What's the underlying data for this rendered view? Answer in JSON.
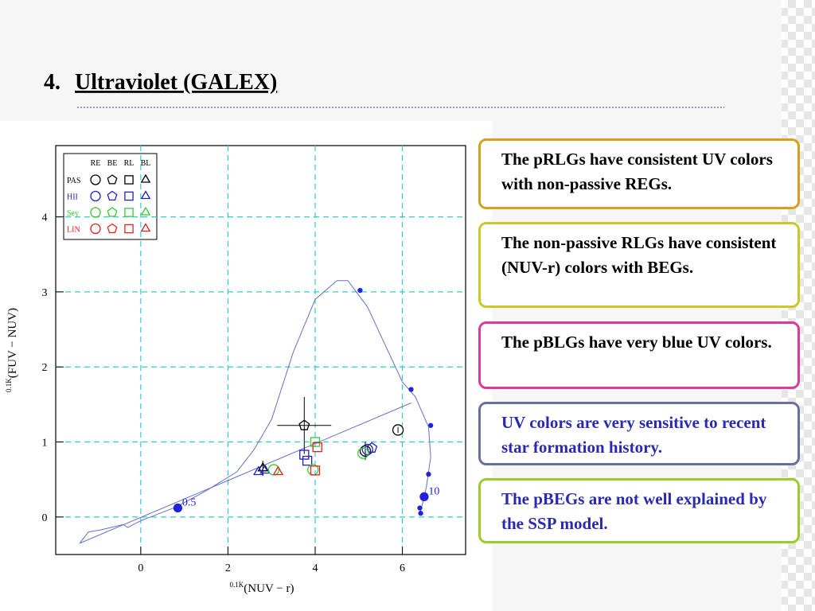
{
  "slide": {
    "number": "4.",
    "title": "Ultraviolet (GALEX)"
  },
  "boxes": [
    {
      "text": "The pRLGs have consistent UV colors with non-passive REGs.",
      "border": "#d4a020",
      "color": "#000000"
    },
    {
      "text": "The non-passive RLGs have consistent (NUV-r) colors with BEGs.",
      "border": "#c9c828",
      "color": "#000000"
    },
    {
      "text": "The pBLGs have very blue UV colors.",
      "border": "#d63c98",
      "color": "#000000"
    },
    {
      "text": "UV colors are very sensitive to recent star formation history.",
      "border": "#6b6f9e",
      "color": "#2a2ab0"
    },
    {
      "text": "The pBEGs are not well explained by the SSP model.",
      "border": "#9ccc2c",
      "color": "#2a2ab0"
    }
  ],
  "chart_data": {
    "type": "scatter",
    "xlabel_prefix": "0.1K",
    "xlabel": "(NUV − r)",
    "ylabel_prefix": "0.1K",
    "ylabel": "(FUV − NUV)",
    "xlim": [
      -1.95,
      7.45
    ],
    "ylim": [
      -0.5,
      4.95
    ],
    "xticks": [
      0,
      2,
      4,
      6
    ],
    "yticks": [
      0,
      1,
      2,
      3,
      4
    ],
    "grid": true,
    "grid_color": "#33cccc",
    "legend": {
      "columns": [
        "RE",
        "BE",
        "RL",
        "BL"
      ],
      "markers": [
        "circle",
        "pentagon",
        "square",
        "triangle"
      ],
      "rows": [
        {
          "label": "PAS",
          "color": "#000000"
        },
        {
          "label": "HII",
          "color": "#2020c0"
        },
        {
          "label": "Sey",
          "color": "#33cc33"
        },
        {
          "label": "LIN",
          "color": "#dd2222"
        }
      ]
    },
    "lines": [
      {
        "color": "#6670c8",
        "x": [
          -1.4,
          -1.2,
          -0.9,
          -0.4,
          -0.3,
          0,
          0.8,
          1.5,
          2.2,
          2.6,
          3.0,
          3.5,
          4.0,
          4.5,
          4.75,
          5.2,
          5.6,
          6.0,
          6.3,
          6.6,
          6.65,
          6.55,
          6.45,
          6.4
        ],
        "y": [
          -0.35,
          -0.2,
          -0.17,
          -0.1,
          -0.14,
          -0.05,
          0.13,
          0.35,
          0.6,
          0.9,
          1.3,
          2.2,
          2.9,
          3.15,
          3.15,
          2.8,
          2.3,
          1.8,
          1.6,
          1.2,
          0.8,
          0.4,
          0.15,
          0.05
        ]
      },
      {
        "color": "#6670c8",
        "x": [
          -1.4,
          6.2
        ],
        "y": [
          -0.35,
          1.52
        ]
      }
    ],
    "annotations": [
      {
        "text": "0.5",
        "x": 0.95,
        "y": 0.15
      },
      {
        "text": "10",
        "x": 6.6,
        "y": 0.3
      }
    ],
    "series": [
      {
        "color": "#2222dd",
        "marker": "dot",
        "size": 2.5,
        "x": [
          5.03,
          6.2,
          6.65,
          6.6,
          6.4,
          6.42
        ],
        "y": [
          3.02,
          1.7,
          1.22,
          0.57,
          0.12,
          0.05
        ]
      },
      {
        "color": "#2222dd",
        "marker": "dot",
        "size": 5,
        "x": [
          0.85,
          6.5
        ],
        "y": [
          0.12,
          0.27
        ]
      },
      {
        "color": "#000000",
        "marker": "pentagon",
        "x": [
          3.75
        ],
        "y": [
          1.22
        ],
        "xerr": [
          0.62
        ],
        "yerr": [
          0.38
        ]
      },
      {
        "color": "#000000",
        "marker": "circle",
        "x": [
          5.9,
          5.15
        ],
        "y": [
          1.16,
          0.88
        ],
        "yerr": [
          0.04,
          0.12
        ]
      },
      {
        "color": "#000000",
        "marker": "triangle",
        "x": [
          2.8
        ],
        "y": [
          0.65
        ],
        "yerr": [
          0.1
        ]
      },
      {
        "color": "#2020c0",
        "marker": "triangle",
        "x": [
          2.7,
          2.85
        ],
        "y": [
          0.6,
          0.62
        ]
      },
      {
        "color": "#2020c0",
        "marker": "square",
        "x": [
          3.75,
          3.82
        ],
        "y": [
          0.83,
          0.75
        ]
      },
      {
        "color": "#2020c0",
        "marker": "pentagon",
        "x": [
          5.3
        ],
        "y": [
          0.92
        ]
      },
      {
        "color": "#2020c0",
        "marker": "circle",
        "x": [
          5.2
        ],
        "y": [
          0.9
        ]
      },
      {
        "color": "#33cc33",
        "marker": "circle",
        "x": [
          3.05,
          3.95,
          5.1
        ],
        "y": [
          0.63,
          0.63,
          0.85
        ]
      },
      {
        "color": "#33cc33",
        "marker": "square",
        "x": [
          4.0
        ],
        "y": [
          1.0
        ]
      },
      {
        "color": "#dd2222",
        "marker": "triangle",
        "x": [
          3.15
        ],
        "y": [
          0.6
        ]
      },
      {
        "color": "#dd2222",
        "marker": "square",
        "x": [
          4.05,
          4.0
        ],
        "y": [
          0.93,
          0.62
        ]
      }
    ]
  }
}
